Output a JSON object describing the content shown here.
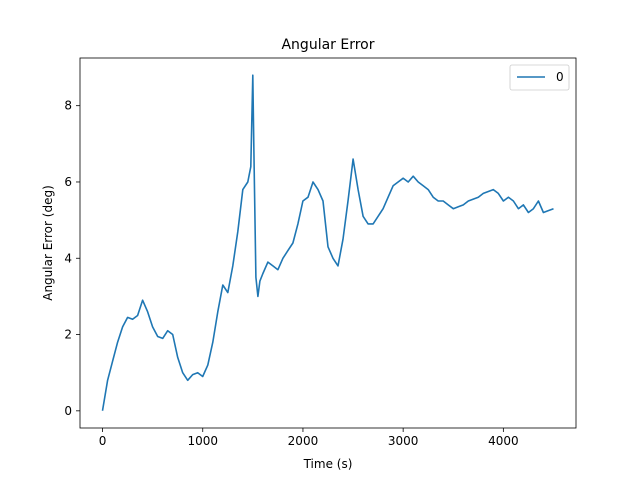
{
  "chart_data": {
    "type": "line",
    "title": "Angular Error",
    "xlabel": "Time (s)",
    "ylabel": "Angular Error (deg)",
    "xlim": [
      -225,
      4725
    ],
    "ylim": [
      -0.45,
      9.25
    ],
    "xticks": [
      0,
      1000,
      2000,
      3000,
      4000
    ],
    "yticks": [
      0,
      2,
      4,
      6,
      8
    ],
    "grid": false,
    "legend": {
      "position": "top-right",
      "entries": [
        "0"
      ]
    },
    "series": [
      {
        "name": "0",
        "color": "#1f77b4",
        "x": [
          0,
          50,
          100,
          150,
          200,
          250,
          300,
          350,
          400,
          450,
          500,
          550,
          600,
          650,
          700,
          750,
          800,
          850,
          900,
          950,
          1000,
          1050,
          1100,
          1150,
          1200,
          1250,
          1300,
          1350,
          1400,
          1450,
          1480,
          1500,
          1510,
          1530,
          1550,
          1570,
          1600,
          1650,
          1700,
          1750,
          1800,
          1850,
          1900,
          1950,
          2000,
          2050,
          2100,
          2150,
          2200,
          2250,
          2300,
          2350,
          2400,
          2450,
          2500,
          2550,
          2600,
          2650,
          2700,
          2750,
          2800,
          2850,
          2900,
          2950,
          3000,
          3050,
          3100,
          3150,
          3200,
          3250,
          3300,
          3350,
          3400,
          3450,
          3500,
          3550,
          3600,
          3650,
          3700,
          3750,
          3800,
          3850,
          3900,
          3950,
          4000,
          4050,
          4100,
          4150,
          4200,
          4250,
          4300,
          4350,
          4400,
          4450,
          4500
        ],
        "y": [
          0.0,
          0.8,
          1.3,
          1.8,
          2.2,
          2.45,
          2.4,
          2.5,
          2.9,
          2.6,
          2.2,
          1.95,
          1.9,
          2.1,
          2.0,
          1.4,
          1.0,
          0.8,
          0.95,
          1.0,
          0.9,
          1.2,
          1.8,
          2.6,
          3.3,
          3.1,
          3.8,
          4.7,
          5.8,
          6.0,
          6.4,
          8.8,
          6.8,
          3.5,
          3.0,
          3.4,
          3.6,
          3.9,
          3.8,
          3.7,
          4.0,
          4.2,
          4.4,
          4.9,
          5.5,
          5.6,
          6.0,
          5.8,
          5.5,
          4.3,
          4.0,
          3.8,
          4.5,
          5.5,
          6.6,
          5.8,
          5.1,
          4.9,
          4.9,
          5.1,
          5.3,
          5.6,
          5.9,
          6.0,
          6.1,
          6.0,
          6.15,
          6.0,
          5.9,
          5.8,
          5.6,
          5.5,
          5.5,
          5.4,
          5.3,
          5.35,
          5.4,
          5.5,
          5.55,
          5.6,
          5.7,
          5.75,
          5.8,
          5.7,
          5.5,
          5.6,
          5.5,
          5.3,
          5.4,
          5.2,
          5.3,
          5.5,
          5.2,
          5.25,
          5.3
        ]
      }
    ]
  }
}
